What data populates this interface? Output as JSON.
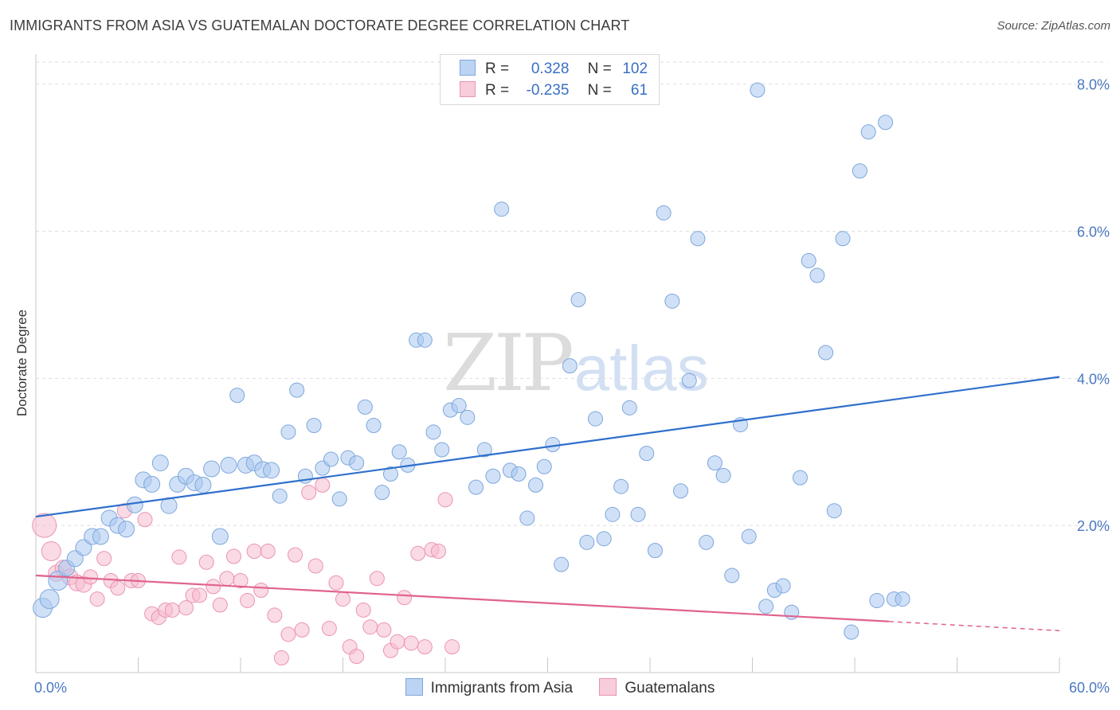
{
  "header": {
    "title": "IMMIGRANTS FROM ASIA VS GUATEMALAN DOCTORATE DEGREE CORRELATION CHART",
    "source": "Source: ZipAtlas.com"
  },
  "watermark": {
    "zip": "ZIP",
    "atlas": "atlas"
  },
  "legend": {
    "rows": [
      {
        "r_label": "R =",
        "r_value": "0.328",
        "n_label": "N =",
        "n_value": "102"
      },
      {
        "r_label": "R =",
        "r_value": "-0.235",
        "n_label": "N =",
        "n_value": "61"
      }
    ]
  },
  "bottom_legend": {
    "asia": "Immigrants from Asia",
    "guatemalans": "Guatemalans"
  },
  "colors": {
    "asia_fill": "#a9c8f0",
    "asia_stroke": "#7ea6dc",
    "asia_line": "#2f6fcc",
    "guat_fill": "#f6bcd0",
    "guat_stroke": "#ea94b2",
    "guat_line": "#e0628e",
    "tick_text": "#4a78c2",
    "grid": "#dedede"
  },
  "chart_data": {
    "type": "scatter",
    "title": "IMMIGRANTS FROM ASIA VS GUATEMALAN DOCTORATE DEGREE CORRELATION CHART",
    "xlabel": "",
    "ylabel": "Doctorate Degree",
    "xlim": [
      0,
      60
    ],
    "ylim": [
      0,
      8.3
    ],
    "x_tick_labels": [
      "0.0%",
      "60.0%"
    ],
    "y_ticks": [
      2,
      4,
      6,
      8
    ],
    "y_tick_labels": [
      "2.0%",
      "4.0%",
      "6.0%",
      "8.0%"
    ],
    "grid": true,
    "legend_position": "top-center",
    "series": [
      {
        "name": "Immigrants from Asia",
        "r": 0.328,
        "n": 102,
        "trend": {
          "x": [
            0,
            60
          ],
          "y": [
            2.12,
            4.02
          ],
          "dashed_from": null
        },
        "points": [
          [
            0.4,
            0.88,
            12
          ],
          [
            0.8,
            1.0,
            12
          ],
          [
            1.3,
            1.25,
            12
          ],
          [
            1.8,
            1.42,
            10
          ],
          [
            2.3,
            1.55,
            10
          ],
          [
            2.8,
            1.7,
            10
          ],
          [
            3.3,
            1.85,
            10
          ],
          [
            3.8,
            1.85,
            10
          ],
          [
            4.3,
            2.1,
            10
          ],
          [
            4.8,
            2.0,
            10
          ],
          [
            5.3,
            1.95,
            10
          ],
          [
            5.8,
            2.28,
            10
          ],
          [
            6.3,
            2.62,
            10
          ],
          [
            6.8,
            2.56,
            10
          ],
          [
            7.3,
            2.85,
            10
          ],
          [
            7.8,
            2.27,
            10
          ],
          [
            8.3,
            2.56,
            10
          ],
          [
            8.8,
            2.67,
            10
          ],
          [
            9.3,
            2.58,
            10
          ],
          [
            9.8,
            2.55,
            10
          ],
          [
            10.3,
            2.77,
            10
          ],
          [
            10.8,
            1.85,
            10
          ],
          [
            11.3,
            2.82,
            10
          ],
          [
            11.8,
            3.77,
            9
          ],
          [
            12.3,
            2.82,
            10
          ],
          [
            12.8,
            2.85,
            10
          ],
          [
            13.3,
            2.76,
            10
          ],
          [
            13.8,
            2.75,
            10
          ],
          [
            14.3,
            2.4,
            9
          ],
          [
            14.8,
            3.27,
            9
          ],
          [
            15.3,
            3.84,
            9
          ],
          [
            15.8,
            2.67,
            9
          ],
          [
            16.3,
            3.36,
            9
          ],
          [
            16.8,
            2.78,
            9
          ],
          [
            17.3,
            2.9,
            9
          ],
          [
            17.8,
            2.36,
            9
          ],
          [
            18.3,
            2.92,
            9
          ],
          [
            18.8,
            2.85,
            9
          ],
          [
            19.3,
            3.61,
            9
          ],
          [
            19.8,
            3.36,
            9
          ],
          [
            20.3,
            2.45,
            9
          ],
          [
            20.8,
            2.7,
            9
          ],
          [
            21.3,
            3.0,
            9
          ],
          [
            21.8,
            2.82,
            9
          ],
          [
            22.3,
            4.52,
            9
          ],
          [
            22.8,
            4.52,
            9
          ],
          [
            23.3,
            3.27,
            9
          ],
          [
            23.8,
            3.03,
            9
          ],
          [
            24.3,
            3.57,
            9
          ],
          [
            24.8,
            3.63,
            9
          ],
          [
            25.3,
            3.47,
            9
          ],
          [
            25.8,
            2.52,
            9
          ],
          [
            26.3,
            3.03,
            9
          ],
          [
            26.8,
            2.67,
            9
          ],
          [
            27.3,
            6.3,
            9
          ],
          [
            27.8,
            2.75,
            9
          ],
          [
            28.3,
            2.7,
            9
          ],
          [
            28.8,
            2.1,
            9
          ],
          [
            29.3,
            2.55,
            9
          ],
          [
            29.8,
            2.8,
            9
          ],
          [
            30.3,
            3.1,
            9
          ],
          [
            30.8,
            1.47,
            9
          ],
          [
            31.3,
            4.17,
            9
          ],
          [
            31.8,
            5.07,
            9
          ],
          [
            32.3,
            1.77,
            9
          ],
          [
            32.8,
            3.45,
            9
          ],
          [
            33.3,
            1.82,
            9
          ],
          [
            33.8,
            2.15,
            9
          ],
          [
            34.3,
            2.53,
            9
          ],
          [
            34.8,
            3.6,
            9
          ],
          [
            35.3,
            2.15,
            9
          ],
          [
            35.8,
            2.98,
            9
          ],
          [
            36.3,
            1.66,
            9
          ],
          [
            36.8,
            6.25,
            9
          ],
          [
            37.3,
            5.05,
            9
          ],
          [
            37.8,
            2.47,
            9
          ],
          [
            38.3,
            3.97,
            9
          ],
          [
            38.8,
            5.9,
            9
          ],
          [
            39.3,
            1.77,
            9
          ],
          [
            39.8,
            2.85,
            9
          ],
          [
            40.3,
            2.68,
            9
          ],
          [
            40.8,
            1.32,
            9
          ],
          [
            41.3,
            3.37,
            9
          ],
          [
            41.8,
            1.85,
            9
          ],
          [
            42.3,
            7.92,
            9
          ],
          [
            42.8,
            0.9,
            9
          ],
          [
            43.3,
            1.12,
            9
          ],
          [
            43.8,
            1.18,
            9
          ],
          [
            44.3,
            0.82,
            9
          ],
          [
            44.8,
            2.65,
            9
          ],
          [
            45.3,
            5.6,
            9
          ],
          [
            45.8,
            5.4,
            9
          ],
          [
            46.3,
            4.35,
            9
          ],
          [
            46.8,
            2.2,
            9
          ],
          [
            47.3,
            5.9,
            9
          ],
          [
            47.8,
            0.55,
            9
          ],
          [
            48.3,
            6.82,
            9
          ],
          [
            48.8,
            7.35,
            9
          ],
          [
            49.3,
            0.98,
            9
          ],
          [
            49.8,
            7.48,
            9
          ],
          [
            50.3,
            1.0,
            9
          ],
          [
            50.8,
            1.0,
            9
          ]
        ]
      },
      {
        "name": "Guatemalans",
        "r": -0.235,
        "n": 61,
        "trend": {
          "x": [
            0,
            60
          ],
          "y": [
            1.32,
            0.57
          ],
          "dashed_from": 50
        },
        "points": [
          [
            0.5,
            2.0,
            15
          ],
          [
            0.9,
            1.65,
            12
          ],
          [
            1.2,
            1.35,
            10
          ],
          [
            1.6,
            1.42,
            10
          ],
          [
            2.0,
            1.3,
            10
          ],
          [
            2.4,
            1.22,
            10
          ],
          [
            2.8,
            1.2,
            10
          ],
          [
            3.2,
            1.3,
            9
          ],
          [
            3.6,
            1.0,
            9
          ],
          [
            4.0,
            1.55,
            9
          ],
          [
            4.4,
            1.25,
            9
          ],
          [
            4.8,
            1.15,
            9
          ],
          [
            5.2,
            2.2,
            9
          ],
          [
            5.6,
            1.25,
            9
          ],
          [
            6.0,
            1.25,
            9
          ],
          [
            6.4,
            2.08,
            9
          ],
          [
            6.8,
            0.8,
            9
          ],
          [
            7.2,
            0.75,
            9
          ],
          [
            7.6,
            0.85,
            9
          ],
          [
            8.0,
            0.85,
            9
          ],
          [
            8.4,
            1.57,
            9
          ],
          [
            8.8,
            0.88,
            9
          ],
          [
            9.2,
            1.05,
            9
          ],
          [
            9.6,
            1.05,
            9
          ],
          [
            10.0,
            1.5,
            9
          ],
          [
            10.4,
            1.17,
            9
          ],
          [
            10.8,
            0.92,
            9
          ],
          [
            11.2,
            1.28,
            9
          ],
          [
            11.6,
            1.58,
            9
          ],
          [
            12.0,
            1.25,
            9
          ],
          [
            12.4,
            0.98,
            9
          ],
          [
            12.8,
            1.65,
            9
          ],
          [
            13.2,
            1.12,
            9
          ],
          [
            13.6,
            1.65,
            9
          ],
          [
            14.0,
            0.78,
            9
          ],
          [
            14.4,
            0.2,
            9
          ],
          [
            14.8,
            0.52,
            9
          ],
          [
            15.2,
            1.6,
            9
          ],
          [
            15.6,
            0.58,
            9
          ],
          [
            16.0,
            2.45,
            9
          ],
          [
            16.4,
            1.45,
            9
          ],
          [
            16.8,
            2.55,
            9
          ],
          [
            17.2,
            0.6,
            9
          ],
          [
            17.6,
            1.22,
            9
          ],
          [
            18.0,
            1.0,
            9
          ],
          [
            18.4,
            0.35,
            9
          ],
          [
            18.8,
            0.22,
            9
          ],
          [
            19.2,
            0.85,
            9
          ],
          [
            19.6,
            0.62,
            9
          ],
          [
            20.0,
            1.28,
            9
          ],
          [
            20.4,
            0.58,
            9
          ],
          [
            20.8,
            0.3,
            9
          ],
          [
            21.2,
            0.42,
            9
          ],
          [
            21.6,
            1.02,
            9
          ],
          [
            22.0,
            0.4,
            9
          ],
          [
            22.4,
            1.62,
            9
          ],
          [
            22.8,
            0.35,
            9
          ],
          [
            23.2,
            1.67,
            9
          ],
          [
            23.6,
            1.65,
            9
          ],
          [
            24.0,
            2.35,
            9
          ],
          [
            24.4,
            0.35,
            9
          ]
        ]
      }
    ]
  }
}
